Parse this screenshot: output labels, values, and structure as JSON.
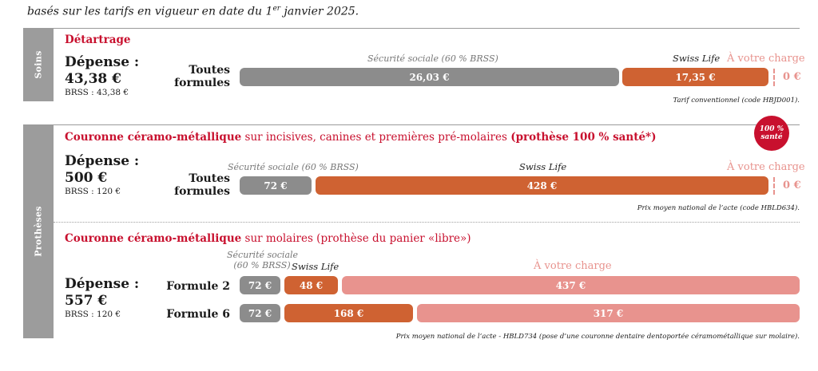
{
  "subtitle": {
    "text": "basés sur les tarifs en vigueur en date du 1",
    "sup": "er",
    "tail": " janvier 2025."
  },
  "soins": {
    "side_label": "Soins",
    "title": "Détartrage",
    "depense_label": "Dépense :",
    "depense_value": "43,38 €",
    "brss": "BRSS : 43,38 €",
    "formule_line1": "Toutes",
    "formule_line2": "formules",
    "secu_caption": "Sécurité sociale (60 % BRSS)",
    "swiss_caption": "Swiss Life",
    "charge_caption": "À votre charge",
    "secu_value": "26,03 €",
    "swiss_value": "17,35 €",
    "charge_value": "0 €",
    "note": "Tarif conventionnel (code HBJD001)."
  },
  "protheses": {
    "side_label": "Prothèses",
    "badge_line1": "100 %",
    "badge_line2": "santé",
    "crown1": {
      "title_bold": "Couronne céramo-métallique",
      "title_mid": " sur incisives, canines et premières pré-molaires ",
      "title_tag": "(prothèse 100 % santé*)",
      "depense_label": "Dépense :",
      "depense_value": "500 €",
      "brss": "BRSS : 120 €",
      "formule_line1": "Toutes",
      "formule_line2": "formules",
      "secu_caption": "Sécurité sociale (60 % BRSS)",
      "swiss_caption": "Swiss Life",
      "charge_caption": "À votre charge",
      "secu_value": "72 €",
      "swiss_value": "428 €",
      "charge_value": "0 €",
      "note": "Prix moyen national de l’acte (code HBLD634)."
    },
    "crown2": {
      "title_bold": "Couronne céramo-métallique",
      "title_rest": " sur molaires (prothèse du panier «libre»)",
      "secu_caption_1": "Sécurité sociale",
      "secu_caption_2": "(60 % BRSS)",
      "swiss_caption": "Swiss Life",
      "charge_caption": "À votre charge",
      "depense_label": "Dépense :",
      "depense_value": "557 €",
      "brss": "BRSS : 120 €",
      "rows": [
        {
          "formule": "Formule 2",
          "secu": "72 €",
          "swiss": "48 €",
          "charge": "437 €"
        },
        {
          "formule": "Formule 6",
          "secu": "72 €",
          "swiss": "168 €",
          "charge": "317 €"
        }
      ],
      "note": "Prix moyen national de l’acte - HBLD734 (pose d’une couronne dentaire dentoportée céramométallique sur molaire)."
    }
  }
}
